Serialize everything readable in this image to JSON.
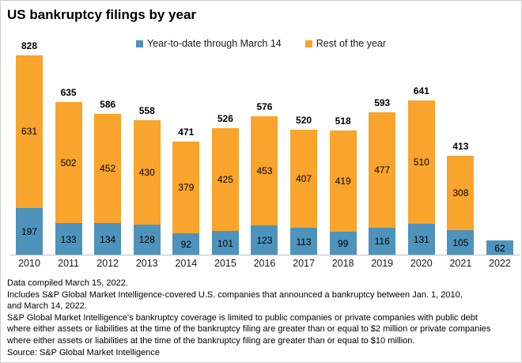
{
  "title": "US bankruptcy filings by year",
  "chart_data": {
    "type": "bar",
    "stacked": true,
    "title": "US bankruptcy filings by year",
    "categories": [
      "2010",
      "2011",
      "2012",
      "2013",
      "2014",
      "2015",
      "2016",
      "2017",
      "2018",
      "2019",
      "2020",
      "2021",
      "2022"
    ],
    "series": [
      {
        "name": "Year-to-date through March 14",
        "color": "#4E93BB",
        "values": [
          197,
          133,
          134,
          128,
          92,
          101,
          123,
          113,
          99,
          116,
          131,
          105,
          62
        ]
      },
      {
        "name": "Rest of the year",
        "color": "#F9A42C",
        "values": [
          631,
          502,
          452,
          430,
          379,
          425,
          453,
          407,
          419,
          477,
          510,
          308,
          null
        ]
      }
    ],
    "totals": [
      828,
      635,
      586,
      558,
      471,
      526,
      576,
      520,
      518,
      593,
      641,
      413,
      null
    ],
    "legend_position": "top",
    "grid": false,
    "ylim": [
      0,
      850
    ]
  },
  "footnotes": [
    "Data compiled March 15, 2022.",
    "Includes S&P Global Market Intelligence-covered U.S. companies that announced a bankruptcy between Jan. 1, 2010,",
    "and March 14, 2022.",
    "S&P Global Market Intelligence's bankruptcy coverage is limited to public companies or private companies with public debt",
    "where either assets or liabilities at the time of the bankruptcy filing are greater than or equal to $2 million or private companies",
    "where either assets or liabilities at the time of the bankruptcy filing are greater than or equal to $10 million.",
    "Source: S&P Global Market Intelligence"
  ],
  "colors": {
    "ytd_blue": "#4E93BB",
    "rest_orange": "#F9A42C",
    "axis_line": "#BFBFBF",
    "text": "#000000"
  }
}
